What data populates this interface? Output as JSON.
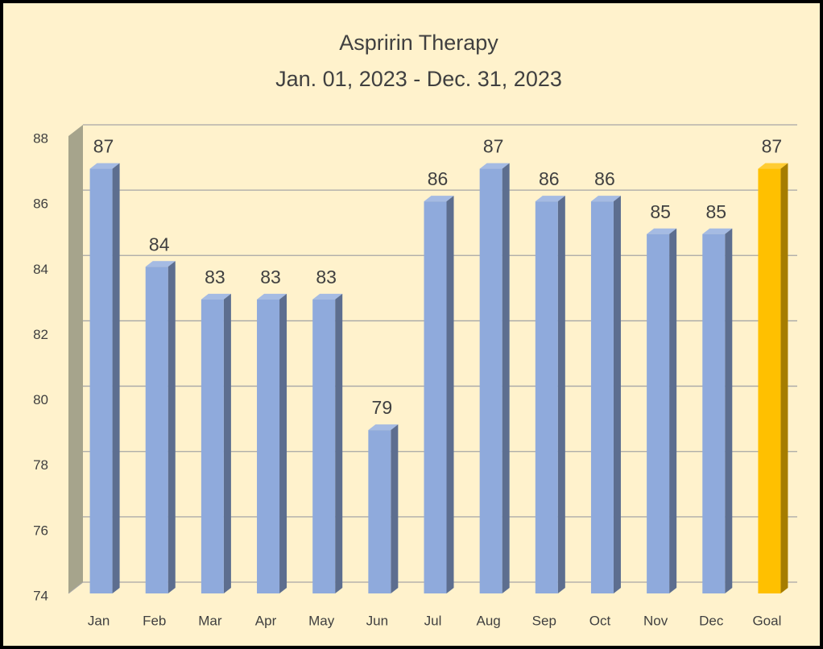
{
  "chart_data": {
    "type": "bar3d",
    "title": "Aspririn Therapy",
    "subtitle": "Jan. 01, 2023 - Dec. 31, 2023",
    "categories": [
      "Jan",
      "Feb",
      "Mar",
      "Apr",
      "May",
      "Jun",
      "Jul",
      "Aug",
      "Sep",
      "Oct",
      "Nov",
      "Dec",
      "Goal"
    ],
    "values": [
      87,
      84,
      83,
      83,
      83,
      79,
      86,
      87,
      86,
      86,
      85,
      85,
      87
    ],
    "colors": [
      "#8faadc",
      "#8faadc",
      "#8faadc",
      "#8faadc",
      "#8faadc",
      "#8faadc",
      "#8faadc",
      "#8faadc",
      "#8faadc",
      "#8faadc",
      "#8faadc",
      "#8faadc",
      "#ffc000"
    ],
    "ylim": [
      74,
      88
    ],
    "yticks": [
      74,
      76,
      78,
      80,
      82,
      84,
      86,
      88
    ],
    "grid": true
  }
}
